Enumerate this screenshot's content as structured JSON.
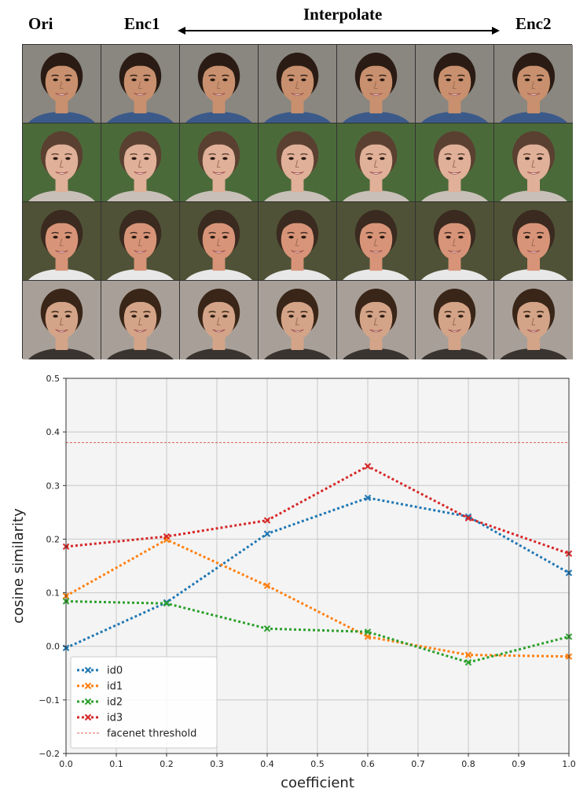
{
  "header": {
    "ori": "Ori",
    "enc1": "Enc1",
    "interpolate": "Interpolate",
    "enc2": "Enc2"
  },
  "faces": {
    "rows": [
      {
        "name": "row-0",
        "bg": "#8a8680",
        "skin": "#c8906e",
        "hair": "#2a1c14",
        "shirt": "#3b5a8a"
      },
      {
        "name": "row-1",
        "bg": "#4b6a3a",
        "skin": "#e0b098",
        "hair": "#5a4030",
        "shirt": "#c8c0b8"
      },
      {
        "name": "row-2",
        "bg": "#4f5236",
        "skin": "#d89478",
        "hair": "#3a2a20",
        "shirt": "#e8e8e8"
      },
      {
        "name": "row-3",
        "bg": "#a8a098",
        "skin": "#d4a488",
        "hair": "#3a2618",
        "shirt": "#3a3430"
      }
    ],
    "columns": 7
  },
  "chart_data": {
    "type": "line",
    "xlabel": "coefficient",
    "ylabel": "cosine similarity",
    "xlim": [
      0.0,
      1.0
    ],
    "ylim": [
      -0.2,
      0.5
    ],
    "xticks": [
      "0.0",
      "0.1",
      "0.2",
      "0.3",
      "0.4",
      "0.5",
      "0.6",
      "0.7",
      "0.8",
      "0.9",
      "1.0"
    ],
    "yticks": [
      "−0.2",
      "−0.1",
      "0.0",
      "0.1",
      "0.2",
      "0.3",
      "0.4",
      "0.5"
    ],
    "grid": true,
    "legend_position": "lower-left",
    "x": [
      0.0,
      0.2,
      0.4,
      0.6,
      0.8,
      1.0
    ],
    "series": [
      {
        "name": "id0",
        "color": "#1f77b4",
        "values": [
          -0.003,
          0.082,
          0.21,
          0.277,
          0.242,
          0.137
        ]
      },
      {
        "name": "id1",
        "color": "#ff7f0e",
        "values": [
          0.094,
          0.199,
          0.113,
          0.018,
          -0.016,
          -0.019
        ]
      },
      {
        "name": "id2",
        "color": "#2ca02c",
        "values": [
          0.084,
          0.08,
          0.033,
          0.027,
          -0.03,
          0.018
        ]
      },
      {
        "name": "id3",
        "color": "#d62728",
        "values": [
          0.186,
          0.205,
          0.235,
          0.336,
          0.239,
          0.173
        ]
      }
    ],
    "threshold": {
      "name": "facenet threshold",
      "value": 0.38,
      "color": "#d62728"
    }
  }
}
